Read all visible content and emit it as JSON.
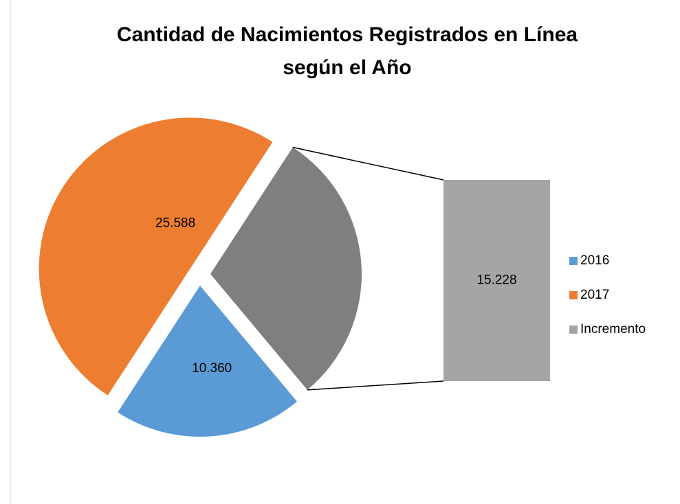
{
  "chart_data": {
    "type": "pie-of-bar",
    "title": [
      "Cantidad de Nacimientos Registrados en Línea",
      "según el Año"
    ],
    "categories": [
      "2016",
      "2017",
      "Incremento"
    ],
    "values": [
      10360,
      25588,
      15228
    ],
    "value_labels": [
      "10.360",
      "25.588",
      "15.228"
    ],
    "colors": [
      "#5b9bd5",
      "#ed7d31",
      "#7f7f7f"
    ],
    "bar_color": "#a5a5a5",
    "legend": "right"
  }
}
